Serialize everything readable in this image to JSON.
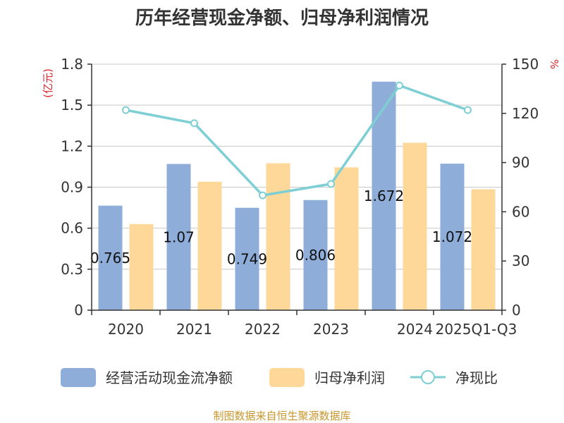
{
  "chart_data": {
    "type": "bar",
    "title": "历年经营现金净额、归母净利润情况",
    "categories": [
      "2020",
      "2021",
      "2022",
      "2023",
      "2024",
      "2025Q1-Q3"
    ],
    "series": [
      {
        "name": "经营活动现金流净额",
        "type": "bar",
        "axis": "left",
        "color": "#8eadd9",
        "values": [
          0.765,
          1.07,
          0.749,
          0.806,
          1.672,
          1.072
        ]
      },
      {
        "name": "归母净利润",
        "type": "bar",
        "axis": "left",
        "color": "#fdd899",
        "values": [
          0.63,
          0.94,
          1.075,
          1.045,
          1.225,
          0.885
        ]
      },
      {
        "name": "净现比",
        "type": "line",
        "axis": "right",
        "color": "#7ecfd4",
        "values": [
          122,
          114,
          70,
          77,
          137,
          122
        ]
      }
    ],
    "data_labels": [
      "0.765",
      "1.07",
      "0.749",
      "0.806",
      "1.672",
      "1.072"
    ],
    "y_left": {
      "unit": "(亿元)",
      "ylim": [
        0,
        1.8
      ],
      "ticks": [
        "0",
        "0.3",
        "0.6",
        "0.9",
        "1.2",
        "1.5",
        "1.8"
      ]
    },
    "y_right": {
      "unit": "%",
      "ylim": [
        0,
        150
      ],
      "ticks": [
        "0",
        "30",
        "60",
        "90",
        "120",
        "150"
      ]
    },
    "grid": true,
    "legend_position": "bottom",
    "source": "制图数据来自恒生聚源数据库"
  }
}
